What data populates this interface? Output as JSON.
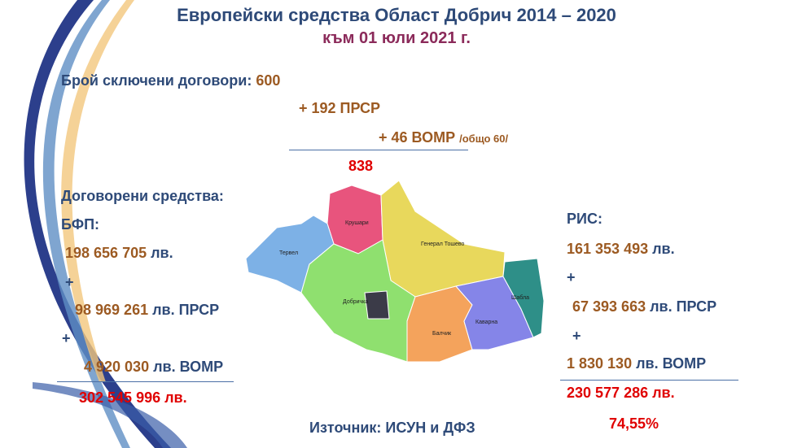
{
  "header": {
    "title": "Европейски средства Област Добрич 2014 – 2020",
    "subtitle": "към 01 юли 2021 г."
  },
  "contracts": {
    "label": "Брой сключени договори:",
    "base": "600",
    "prsr": "+ 192 ПРСР",
    "vomr": "+ 46 ВОМР",
    "vomr_note": "/общо 60/",
    "total": "838"
  },
  "funds_heading": "Договорени средства:",
  "bfp": {
    "label": "БФП:",
    "plus": [
      "+",
      "+"
    ],
    "items": [
      {
        "amount": "198 656 705",
        "unit": "лв."
      },
      {
        "amount": "98 969 261",
        "unit": "лв. ПРСР"
      },
      {
        "amount": "4 920 030",
        "unit": "лв. ВОМР"
      }
    ],
    "total": "302 545 996 лв."
  },
  "ris": {
    "label": "РИС:",
    "plus": [
      "+",
      "+"
    ],
    "items": [
      {
        "amount": "161 353 493",
        "unit": "лв."
      },
      {
        "amount": "67 393 663",
        "unit": "лв. ПРСР"
      },
      {
        "amount": "1 830 130",
        "unit": "лв. ВОМР"
      }
    ],
    "total": "230 577 286 лв.",
    "percent": "74,55%"
  },
  "map": {
    "regions": [
      "Крушари",
      "Тервел",
      "Генерал Тошево",
      "Добричка",
      "Шабла",
      "Каварна",
      "Балчик"
    ]
  },
  "source": "Източник: ИСУН и ДФЗ"
}
